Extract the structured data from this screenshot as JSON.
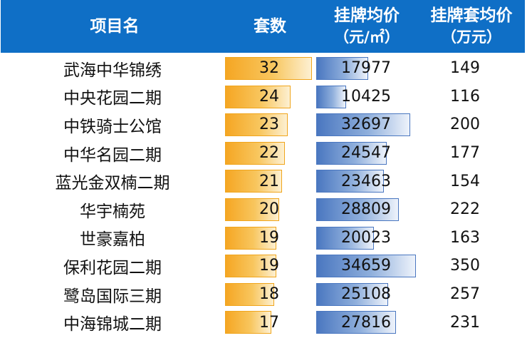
{
  "chart_data": {
    "type": "table",
    "columns": [
      {
        "lines": [
          "项目名"
        ]
      },
      {
        "lines": [
          "套数"
        ]
      },
      {
        "lines": [
          "挂牌均价",
          "（元/㎡）"
        ]
      },
      {
        "lines": [
          "挂牌套均价",
          "（万元）"
        ]
      }
    ],
    "rows": [
      {
        "name": "武海中华锦绣",
        "count": 32,
        "avg_price": 17977,
        "avg_total": 149
      },
      {
        "name": "中央花园二期",
        "count": 24,
        "avg_price": 10425,
        "avg_total": 116
      },
      {
        "name": "中铁骑士公馆",
        "count": 23,
        "avg_price": 32697,
        "avg_total": 200
      },
      {
        "name": "中华名园二期",
        "count": 22,
        "avg_price": 24547,
        "avg_total": 177
      },
      {
        "name": "蓝光金双楠二期",
        "count": 21,
        "avg_price": 23463,
        "avg_total": 154
      },
      {
        "name": "华宇楠苑",
        "count": 20,
        "avg_price": 28809,
        "avg_total": 222
      },
      {
        "name": "世豪嘉柏",
        "count": 19,
        "avg_price": 20023,
        "avg_total": 163
      },
      {
        "name": "保利花园二期",
        "count": 19,
        "avg_price": 34659,
        "avg_total": 350
      },
      {
        "name": "鹭岛国际三期",
        "count": 18,
        "avg_price": 25108,
        "avg_total": 257
      },
      {
        "name": "中海锦城二期",
        "count": 17,
        "avg_price": 27816,
        "avg_total": 231
      }
    ],
    "colors": {
      "header": "#0f6fc6",
      "count_bar": "#f5a623",
      "price_bar": "#4a77c0"
    }
  }
}
